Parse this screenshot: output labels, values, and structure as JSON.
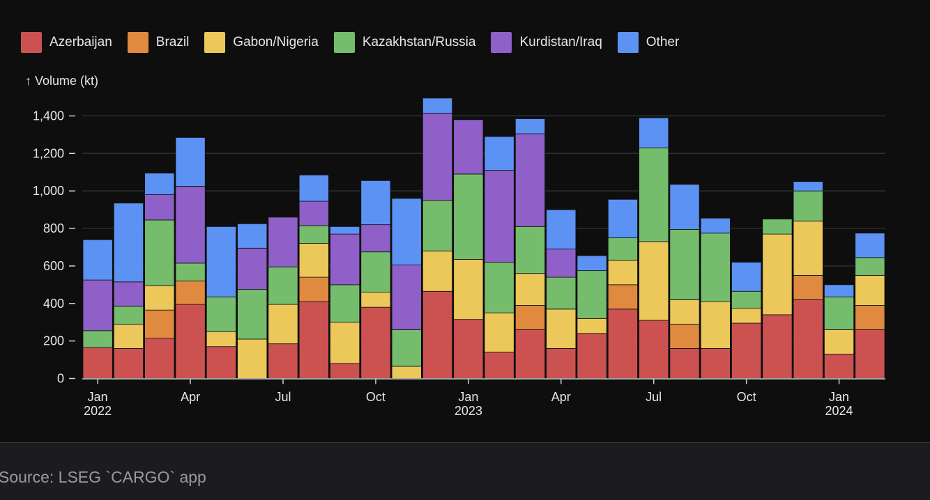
{
  "caption": {
    "source": "Source: LSEG `CARGO` app"
  },
  "chart_data": {
    "type": "bar",
    "stacked": true,
    "title": "",
    "xlabel": "",
    "ylabel": "↑ Volume (kt)",
    "ylim": [
      0,
      1500
    ],
    "grid": true,
    "legend_position": "top-left",
    "yticks": [
      0,
      200,
      400,
      600,
      800,
      1000,
      1200,
      1400
    ],
    "ytick_labels": [
      "0",
      "200",
      "400",
      "600",
      "800",
      "1,000",
      "1,200",
      "1,400"
    ],
    "categories": [
      "2022-01",
      "2022-02",
      "2022-03",
      "2022-04",
      "2022-05",
      "2022-06",
      "2022-07",
      "2022-08",
      "2022-09",
      "2022-10",
      "2022-11",
      "2022-12",
      "2023-01",
      "2023-02",
      "2023-03",
      "2023-04",
      "2023-05",
      "2023-06",
      "2023-07",
      "2023-08",
      "2023-09",
      "2023-10",
      "2023-11",
      "2023-12",
      "2024-01",
      "2024-02"
    ],
    "xticks": [
      {
        "category": "2022-01",
        "line1": "Jan",
        "line2": "2022"
      },
      {
        "category": "2022-04",
        "line1": "Apr",
        "line2": ""
      },
      {
        "category": "2022-07",
        "line1": "Jul",
        "line2": ""
      },
      {
        "category": "2022-10",
        "line1": "Oct",
        "line2": ""
      },
      {
        "category": "2023-01",
        "line1": "Jan",
        "line2": "2023"
      },
      {
        "category": "2023-04",
        "line1": "Apr",
        "line2": ""
      },
      {
        "category": "2023-07",
        "line1": "Jul",
        "line2": ""
      },
      {
        "category": "2023-10",
        "line1": "Oct",
        "line2": ""
      },
      {
        "category": "2024-01",
        "line1": "Jan",
        "line2": "2024"
      }
    ],
    "series": [
      {
        "name": "Azerbaijan",
        "color": "#cc5252",
        "values": [
          165,
          160,
          215,
          395,
          170,
          0,
          185,
          410,
          80,
          380,
          0,
          465,
          315,
          140,
          260,
          160,
          240,
          370,
          310,
          160,
          160,
          295,
          340,
          420,
          130,
          260
        ]
      },
      {
        "name": "Brazil",
        "color": "#e08a40",
        "values": [
          0,
          0,
          150,
          125,
          0,
          0,
          0,
          130,
          0,
          0,
          0,
          0,
          0,
          0,
          130,
          0,
          0,
          130,
          0,
          130,
          0,
          0,
          0,
          130,
          0,
          130
        ]
      },
      {
        "name": "Gabon/Nigeria",
        "color": "#ecc75a",
        "values": [
          0,
          130,
          130,
          0,
          80,
          210,
          210,
          180,
          220,
          80,
          65,
          215,
          320,
          210,
          170,
          210,
          80,
          130,
          420,
          130,
          250,
          80,
          430,
          290,
          130,
          160
        ]
      },
      {
        "name": "Kazakhstan/Russia",
        "color": "#75bd6d",
        "values": [
          90,
          95,
          350,
          95,
          185,
          265,
          200,
          95,
          200,
          215,
          195,
          270,
          455,
          270,
          250,
          170,
          255,
          120,
          500,
          375,
          365,
          90,
          80,
          160,
          175,
          95
        ]
      },
      {
        "name": "Kurdistan/Iraq",
        "color": "#8e60c8",
        "values": [
          270,
          130,
          135,
          410,
          0,
          220,
          265,
          130,
          270,
          145,
          345,
          465,
          290,
          490,
          495,
          150,
          0,
          0,
          0,
          0,
          0,
          0,
          0,
          0,
          0,
          0
        ]
      },
      {
        "name": "Other",
        "color": "#5c92f4",
        "values": [
          215,
          420,
          115,
          260,
          375,
          130,
          0,
          140,
          40,
          235,
          355,
          80,
          0,
          180,
          80,
          210,
          80,
          205,
          160,
          240,
          80,
          155,
          0,
          50,
          65,
          130
        ]
      }
    ]
  }
}
